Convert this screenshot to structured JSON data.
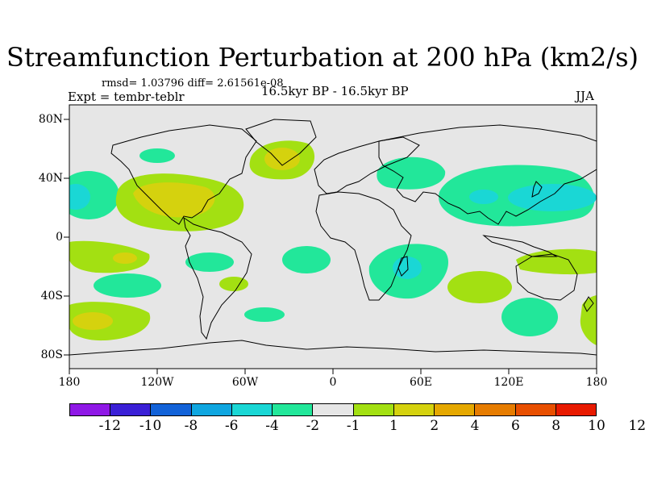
{
  "title": "Streamfunction Perturbation at 200 hPa (km2/s)",
  "stats": "rmsd= 1.03796 diff= 2.61561e-08",
  "experiment": "Expt = tembr-teblr",
  "period": "16.5kyr BP - 16.5kyr BP",
  "season": "JJA",
  "y_axis_labels": [
    "80N",
    "40N",
    "0",
    "40S",
    "80S"
  ],
  "x_axis_labels": [
    "180",
    "120W",
    "60W",
    "0",
    "60E",
    "120E",
    "180"
  ],
  "colorbar": {
    "colors": [
      "#8f18e6",
      "#3a1fd6",
      "#1262d8",
      "#0fa6e0",
      "#1ad7d5",
      "#22e79a",
      "#e6e6e6",
      "#a3e012",
      "#d5d20e",
      "#e5a800",
      "#e67c00",
      "#e84f00",
      "#e81a00"
    ],
    "labels": [
      "-12",
      "-10",
      "-8",
      "-6",
      "-4",
      "-2",
      "-1",
      "1",
      "2",
      "4",
      "6",
      "8",
      "10",
      "12"
    ]
  },
  "palette": {
    "background": "#e6e6e6",
    "coast": "#000000"
  }
}
